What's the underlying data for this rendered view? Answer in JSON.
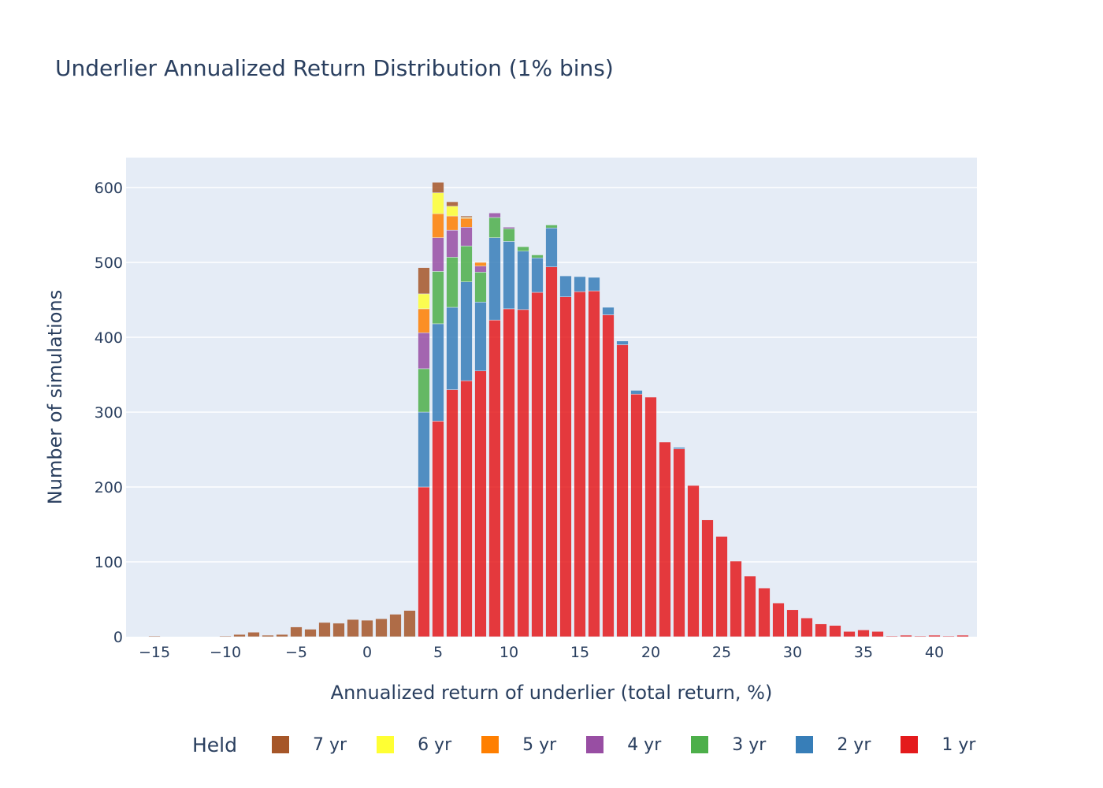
{
  "chart_data": {
    "type": "bar",
    "barmode": "stack",
    "title": "Underlier Annualized Return Distribution (1% bins)",
    "xlabel": "Annualized return of underlier (total return, %)",
    "ylabel": "Number of simulations",
    "xlim": [
      -17,
      43
    ],
    "ylim": [
      0,
      640
    ],
    "x_ticks": [
      "−15",
      "−10",
      "−5",
      "0",
      "5",
      "10",
      "15",
      "20",
      "25",
      "30",
      "35",
      "40"
    ],
    "y_ticks": [
      "0",
      "100",
      "200",
      "300",
      "400",
      "500",
      "600"
    ],
    "x_tick_values": [
      -15,
      -10,
      -5,
      0,
      5,
      10,
      15,
      20,
      25,
      30,
      35,
      40
    ],
    "y_tick_values": [
      0,
      100,
      200,
      300,
      400,
      500,
      600
    ],
    "legend_title": "Held",
    "legend_position": "bottom",
    "grid": true,
    "plot_bgcolor": "#e5ecf6",
    "x": [
      -15,
      -14,
      -13,
      -12,
      -11,
      -10,
      -9,
      -8,
      -7,
      -6,
      -5,
      -4,
      -3,
      -2,
      -1,
      0,
      1,
      2,
      3,
      4,
      5,
      6,
      7,
      8,
      9,
      10,
      11,
      12,
      13,
      14,
      15,
      16,
      17,
      18,
      19,
      20,
      21,
      22,
      23,
      24,
      25,
      26,
      27,
      28,
      29,
      30,
      31,
      32,
      33,
      34,
      35,
      36,
      37,
      38,
      39,
      40,
      41,
      42
    ],
    "series": [
      {
        "name": "7 yr",
        "color": "#a65628",
        "values": [
          1,
          0,
          0,
          0,
          0,
          1,
          3,
          6,
          2,
          3,
          13,
          10,
          19,
          18,
          23,
          22,
          24,
          30,
          35,
          35,
          14,
          6,
          2,
          0,
          0,
          0,
          0,
          0,
          0,
          0,
          0,
          0,
          0,
          0,
          0,
          0,
          0,
          0,
          0,
          0,
          0,
          0,
          0,
          0,
          0,
          0,
          0,
          0,
          0,
          0,
          0,
          0,
          0,
          0,
          0,
          0,
          0,
          0
        ]
      },
      {
        "name": "6 yr",
        "color": "#ffff33",
        "values": [
          0,
          0,
          0,
          0,
          0,
          0,
          0,
          0,
          0,
          0,
          0,
          0,
          0,
          0,
          0,
          0,
          0,
          0,
          0,
          20,
          28,
          13,
          1,
          0,
          0,
          0,
          0,
          0,
          0,
          0,
          0,
          0,
          0,
          0,
          0,
          0,
          0,
          0,
          0,
          0,
          0,
          0,
          0,
          0,
          0,
          0,
          0,
          0,
          0,
          0,
          0,
          0,
          0,
          0,
          0,
          0,
          0,
          0
        ]
      },
      {
        "name": "5 yr",
        "color": "#ff7f00",
        "values": [
          0,
          0,
          0,
          0,
          0,
          0,
          0,
          0,
          0,
          0,
          0,
          0,
          0,
          0,
          0,
          0,
          0,
          0,
          0,
          32,
          32,
          19,
          12,
          5,
          0,
          0,
          0,
          0,
          0,
          0,
          0,
          0,
          0,
          0,
          0,
          0,
          0,
          0,
          0,
          0,
          0,
          0,
          0,
          0,
          0,
          0,
          0,
          0,
          0,
          0,
          0,
          0,
          0,
          0,
          0,
          0,
          0,
          0
        ]
      },
      {
        "name": "4 yr",
        "color": "#984ea3",
        "values": [
          0,
          0,
          0,
          0,
          0,
          0,
          0,
          0,
          0,
          0,
          0,
          0,
          0,
          0,
          0,
          0,
          0,
          0,
          0,
          48,
          45,
          36,
          25,
          8,
          6,
          2,
          0,
          0,
          0,
          0,
          0,
          0,
          0,
          0,
          0,
          0,
          0,
          0,
          0,
          0,
          0,
          0,
          0,
          0,
          0,
          0,
          0,
          0,
          0,
          0,
          0,
          0,
          0,
          0,
          0,
          0,
          0,
          0
        ]
      },
      {
        "name": "3 yr",
        "color": "#4daf4a",
        "values": [
          0,
          0,
          0,
          0,
          0,
          0,
          0,
          0,
          0,
          0,
          0,
          0,
          0,
          0,
          0,
          0,
          0,
          0,
          0,
          58,
          70,
          67,
          48,
          40,
          27,
          17,
          6,
          4,
          4,
          0,
          0,
          0,
          0,
          0,
          0,
          0,
          0,
          0,
          0,
          0,
          0,
          0,
          0,
          0,
          0,
          0,
          0,
          0,
          0,
          0,
          0,
          0,
          0,
          0,
          0,
          0,
          0,
          0
        ]
      },
      {
        "name": "2 yr",
        "color": "#377eb8",
        "values": [
          0,
          0,
          0,
          0,
          0,
          0,
          0,
          0,
          0,
          0,
          0,
          0,
          0,
          0,
          0,
          0,
          0,
          0,
          0,
          100,
          130,
          110,
          132,
          92,
          110,
          90,
          78,
          46,
          52,
          28,
          20,
          18,
          10,
          5,
          5,
          0,
          0,
          2,
          0,
          0,
          0,
          0,
          0,
          0,
          0,
          0,
          0,
          0,
          0,
          0,
          0,
          0,
          0,
          0,
          0,
          0,
          0,
          0
        ]
      },
      {
        "name": "1 yr",
        "color": "#e41a1c",
        "values": [
          0,
          0,
          0,
          0,
          0,
          0,
          0,
          0,
          0,
          0,
          0,
          0,
          0,
          0,
          0,
          0,
          0,
          0,
          0,
          200,
          288,
          330,
          342,
          355,
          423,
          438,
          437,
          460,
          494,
          454,
          461,
          462,
          430,
          390,
          324,
          320,
          260,
          251,
          202,
          156,
          134,
          101,
          81,
          65,
          45,
          36,
          25,
          17,
          15,
          7,
          9,
          7,
          1,
          2,
          1,
          2,
          1,
          2
        ]
      }
    ]
  }
}
